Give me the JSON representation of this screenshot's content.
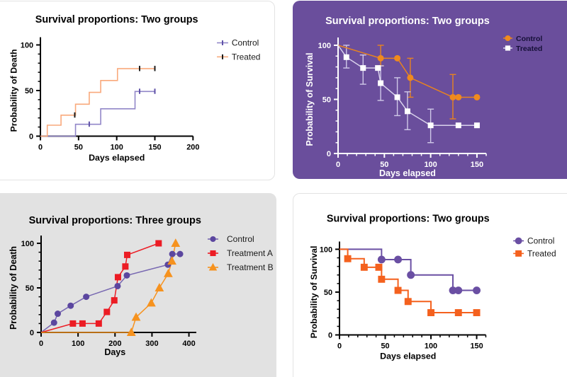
{
  "page": {
    "background": "#ffffff"
  },
  "chart_data": [
    {
      "id": "death-two-groups",
      "type": "line",
      "title": "Survival proportions: Two groups",
      "xlabel": "Days elapsed",
      "ylabel": "Probability of Death",
      "xlim": [
        0,
        200
      ],
      "xticks": [
        0,
        50,
        100,
        150,
        200
      ],
      "x_minor": 0,
      "ylim": [
        0,
        100
      ],
      "yticks": [
        0,
        50,
        100
      ],
      "y_minor": 10,
      "panel_bg": "#ffffff",
      "panel_border": true,
      "fg": "#000000",
      "title_color": "#000000",
      "legend_style": "tick",
      "legend_color": "#1a1a1a",
      "legend_fs": 12,
      "legend_bold": false,
      "grid": false,
      "legend_position": "right",
      "series": [
        {
          "name": "Control",
          "color": "#9186C8",
          "marker": "none",
          "draw": "step",
          "width": 1.6,
          "points": [
            [
              0,
              0
            ],
            [
              46,
              13
            ],
            [
              79,
              30
            ],
            [
              124,
              49
            ],
            [
              150,
              49
            ]
          ],
          "censor_ticks": [
            [
              64,
              13
            ],
            [
              130,
              49
            ],
            [
              150,
              49
            ]
          ],
          "censor_color": "#5F51A8"
        },
        {
          "name": "Treated",
          "color": "#F9A97B",
          "marker": "none",
          "draw": "step",
          "width": 1.6,
          "points": [
            [
              0,
              0
            ],
            [
              9,
              12
            ],
            [
              27,
              23
            ],
            [
              46,
              35
            ],
            [
              64,
              48
            ],
            [
              79,
              61
            ],
            [
              101,
              74
            ],
            [
              150,
              74
            ]
          ],
          "censor_ticks": [
            [
              45,
              23
            ],
            [
              130,
              74
            ],
            [
              150,
              74
            ]
          ],
          "censor_color": "#1c1c1c"
        }
      ]
    },
    {
      "id": "survival-two-groups-purple",
      "type": "line",
      "title": "Survival proportions: Two groups",
      "xlabel": "Days elapsed",
      "ylabel": "Probability of Survival",
      "xlim": [
        0,
        160
      ],
      "xticks": [
        0,
        50,
        100,
        150
      ],
      "x_minor": 10,
      "ylim": [
        0,
        100
      ],
      "yticks": [
        0,
        50,
        100
      ],
      "y_minor": 10,
      "panel_bg": "#6A4E9C",
      "panel_border": false,
      "fg": "#ffffff",
      "title_color": "#ffffff",
      "legend_style": "marker",
      "legend_color": "#161038",
      "legend_fs": 10.5,
      "legend_bold": true,
      "grid": false,
      "legend_position": "top-right",
      "series": [
        {
          "name": "Control",
          "color": "#E8831F",
          "marker": "circle",
          "marker_color": "#F08A1E",
          "draw": "linear",
          "width": 1.5,
          "msize": 9,
          "points": [
            [
              0,
              100
            ],
            [
              46,
              88,
              81,
              100
            ],
            [
              64,
              88
            ],
            [
              78,
              70,
              52,
              88
            ],
            [
              124,
              52,
              32,
              73
            ],
            [
              130,
              52
            ],
            [
              150,
              52
            ]
          ],
          "markers": [
            [
              46,
              88
            ],
            [
              64,
              88
            ],
            [
              78,
              70
            ],
            [
              124,
              52
            ],
            [
              130,
              52
            ],
            [
              150,
              52
            ]
          ]
        },
        {
          "name": "Treated",
          "color": "#D9D2EC",
          "marker": "square",
          "marker_color": "#FFFFFF",
          "err_color": "#CFC8E8",
          "draw": "linear",
          "width": 1.5,
          "msize": 8,
          "points": [
            [
              0,
              100
            ],
            [
              9,
              89,
              79,
              100
            ],
            [
              27,
              79,
              64,
              91
            ],
            [
              43,
              79
            ],
            [
              46,
              65,
              49,
              81
            ],
            [
              64,
              52,
              35,
              70
            ],
            [
              75,
              39,
              22,
              57
            ],
            [
              100,
              26,
              10,
              41
            ],
            [
              130,
              26
            ],
            [
              150,
              26
            ]
          ],
          "markers": [
            [
              9,
              89
            ],
            [
              27,
              79
            ],
            [
              43,
              79
            ],
            [
              46,
              65
            ],
            [
              64,
              52
            ],
            [
              75,
              39
            ],
            [
              100,
              26
            ],
            [
              130,
              26
            ],
            [
              150,
              26
            ]
          ]
        }
      ]
    },
    {
      "id": "death-three-groups",
      "type": "line",
      "title": "Survival proportions: Three groups",
      "xlabel": "Days",
      "ylabel": "Probability of Death",
      "xlim": [
        0,
        420
      ],
      "xticks": [
        0,
        100,
        200,
        300,
        400
      ],
      "x_minor": 0,
      "ylim": [
        0,
        100
      ],
      "yticks": [
        0,
        50,
        100
      ],
      "y_minor": 10,
      "panel_bg": "#E2E2E2",
      "panel_border": false,
      "fg": "#000000",
      "title_color": "#000000",
      "legend_style": "marker",
      "legend_color": "#1a1a1a",
      "legend_fs": 12,
      "legend_bold": false,
      "grid": false,
      "legend_position": "right",
      "series": [
        {
          "name": "Control",
          "color": "#7767B1",
          "marker": "circle",
          "marker_color": "#5B469F",
          "draw": "linear",
          "width": 1.5,
          "msize": 9,
          "points": [
            [
              0,
              0
            ],
            [
              35,
              11
            ],
            [
              45,
              21
            ],
            [
              80,
              30
            ],
            [
              122,
              40
            ],
            [
              207,
              52
            ],
            [
              232,
              64
            ],
            [
              343,
              76
            ],
            [
              355,
              88
            ],
            [
              376,
              88
            ]
          ],
          "markers": [
            [
              35,
              11
            ],
            [
              45,
              21
            ],
            [
              80,
              30
            ],
            [
              122,
              40
            ],
            [
              207,
              52
            ],
            [
              232,
              64
            ],
            [
              343,
              76
            ],
            [
              355,
              88
            ],
            [
              376,
              88
            ]
          ]
        },
        {
          "name": "Treatment A",
          "color": "#EC1C24",
          "marker": "square",
          "marker_color": "#EC1C24",
          "draw": "linear",
          "width": 1.5,
          "msize": 9,
          "points": [
            [
              0,
              0
            ],
            [
              86,
              10
            ],
            [
              112,
              10
            ],
            [
              156,
              10
            ],
            [
              178,
              23
            ],
            [
              198,
              36
            ],
            [
              208,
              62
            ],
            [
              228,
              74
            ],
            [
              233,
              87
            ],
            [
              318,
              100
            ]
          ],
          "markers": [
            [
              86,
              10
            ],
            [
              112,
              10
            ],
            [
              156,
              10
            ],
            [
              178,
              23
            ],
            [
              198,
              36
            ],
            [
              208,
              62
            ],
            [
              228,
              74
            ],
            [
              233,
              87
            ],
            [
              318,
              100
            ]
          ]
        },
        {
          "name": "Treatment B",
          "color": "#F6921E",
          "marker": "triangle",
          "marker_color": "#F6921E",
          "draw": "linear",
          "width": 1.5,
          "msize": 11,
          "points": [
            [
              0,
              0
            ],
            [
              244,
              0
            ],
            [
              257,
              17
            ],
            [
              298,
              33
            ],
            [
              320,
              50
            ],
            [
              344,
              66
            ],
            [
              354,
              80
            ],
            [
              364,
              100
            ]
          ],
          "markers": [
            [
              244,
              0
            ],
            [
              257,
              17
            ],
            [
              298,
              33
            ],
            [
              320,
              50
            ],
            [
              344,
              66
            ],
            [
              354,
              80
            ],
            [
              364,
              100
            ]
          ]
        }
      ]
    },
    {
      "id": "survival-two-groups-white",
      "type": "line",
      "title": "Survival proportions: Two groups",
      "xlabel": "Days elapsed",
      "ylabel": "Probability of Survival",
      "xlim": [
        0,
        160
      ],
      "xticks": [
        0,
        50,
        100,
        150
      ],
      "x_minor": 10,
      "ylim": [
        0,
        100
      ],
      "yticks": [
        0,
        50,
        100
      ],
      "y_minor": 10,
      "panel_bg": "#ffffff",
      "panel_border": true,
      "fg": "#000000",
      "title_color": "#000000",
      "legend_style": "marker",
      "legend_color": "#1a1a1a",
      "legend_fs": 12,
      "legend_bold": false,
      "grid": false,
      "legend_position": "right",
      "series": [
        {
          "name": "Control",
          "color": "#6A4FA3",
          "marker": "circle",
          "marker_color": "#6A4FA3",
          "draw": "step",
          "width": 2,
          "msize": 11,
          "points": [
            [
              0,
              100
            ],
            [
              46,
              88
            ],
            [
              78,
              70
            ],
            [
              124,
              52
            ],
            [
              150,
              52
            ]
          ],
          "markers": [
            [
              46,
              88
            ],
            [
              64,
              88
            ],
            [
              78,
              70
            ],
            [
              124,
              52
            ],
            [
              130,
              52
            ],
            [
              150,
              52
            ]
          ]
        },
        {
          "name": "Treated",
          "color": "#F4611E",
          "marker": "square",
          "marker_color": "#F4611E",
          "draw": "step",
          "width": 2,
          "msize": 10,
          "points": [
            [
              0,
              100
            ],
            [
              9,
              89
            ],
            [
              27,
              79
            ],
            [
              46,
              65
            ],
            [
              64,
              52
            ],
            [
              75,
              39
            ],
            [
              100,
              26
            ],
            [
              150,
              26
            ]
          ],
          "markers": [
            [
              9,
              89
            ],
            [
              27,
              79
            ],
            [
              43,
              79
            ],
            [
              46,
              65
            ],
            [
              64,
              52
            ],
            [
              75,
              39
            ],
            [
              100,
              26
            ],
            [
              130,
              26
            ],
            [
              150,
              26
            ]
          ]
        }
      ]
    }
  ]
}
